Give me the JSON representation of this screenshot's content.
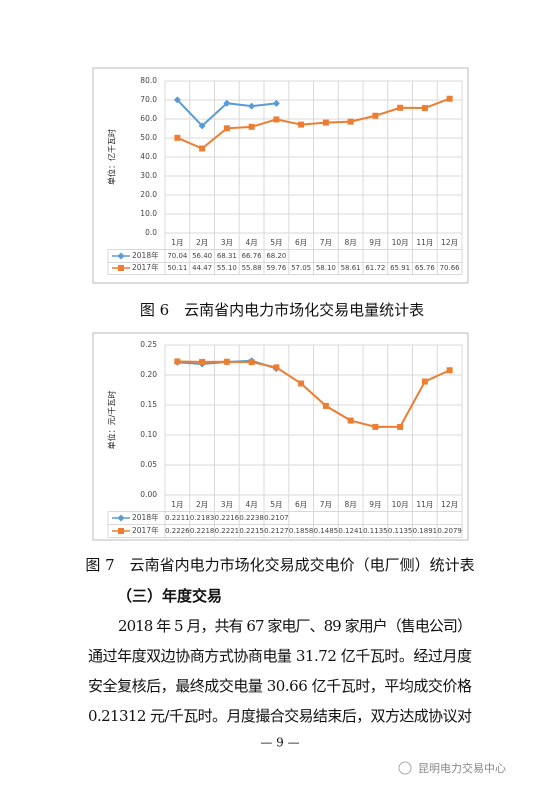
{
  "chart_data": [
    {
      "type": "line",
      "ylabel": "单位：亿千瓦时",
      "categories": [
        "1月",
        "2月",
        "3月",
        "4月",
        "5月",
        "6月",
        "7月",
        "8月",
        "9月",
        "10月",
        "11月",
        "12月"
      ],
      "series": [
        {
          "name": "2018年",
          "color": "#5b9bd5",
          "marker": "diamond",
          "values": [
            70.04,
            56.4,
            68.31,
            66.76,
            68.2,
            null,
            null,
            null,
            null,
            null,
            null,
            null
          ],
          "value_labels": [
            "70.04",
            "56.40",
            "68.31",
            "66.76",
            "68.20",
            null,
            null,
            null,
            null,
            null,
            null,
            null
          ]
        },
        {
          "name": "2017年",
          "color": "#ed7d31",
          "marker": "square",
          "values": [
            50.11,
            44.47,
            55.1,
            55.88,
            59.76,
            57.05,
            58.1,
            58.61,
            61.72,
            65.91,
            65.76,
            70.66
          ],
          "value_labels": [
            "50.11",
            "44.47",
            "55.10",
            "55.88",
            "59.76",
            "57.05",
            "58.10",
            "58.61",
            "61.72",
            "65.91",
            "65.76",
            "70.66"
          ]
        }
      ],
      "ylim": [
        0,
        80
      ],
      "yticks": [
        {
          "value": 0,
          "label": "0.0"
        },
        {
          "value": 10,
          "label": "10.0"
        },
        {
          "value": 20,
          "label": "20.0"
        },
        {
          "value": 30,
          "label": "30.0"
        },
        {
          "value": 40,
          "label": "40.0"
        },
        {
          "value": 50,
          "label": "50.0"
        },
        {
          "value": 60,
          "label": "60.0"
        },
        {
          "value": 70,
          "label": "70.0"
        },
        {
          "value": 80,
          "label": "80.0"
        }
      ],
      "grid": true
    },
    {
      "type": "line",
      "ylabel": "单位：元/千瓦时",
      "categories": [
        "1月",
        "2月",
        "3月",
        "4月",
        "5月",
        "6月",
        "7月",
        "8月",
        "9月",
        "10月",
        "11月",
        "12月"
      ],
      "series": [
        {
          "name": "2018年",
          "color": "#5b9bd5",
          "marker": "diamond",
          "values": [
            0.2211,
            0.2183,
            0.2216,
            0.2238,
            0.2107,
            null,
            null,
            null,
            null,
            null,
            null,
            null
          ]
        },
        {
          "name": "2017年",
          "color": "#ed7d31",
          "marker": "square",
          "values": [
            0.2226,
            0.2218,
            0.2221,
            0.2215,
            0.2127,
            0.1858,
            0.1485,
            0.1241,
            0.1135,
            0.1135,
            0.1891,
            0.2079
          ]
        }
      ],
      "ylim": [
        0,
        0.25
      ],
      "yticks": [
        {
          "value": 0,
          "label": "0.00"
        },
        {
          "value": 0.05,
          "label": "0.05"
        },
        {
          "value": 0.1,
          "label": "0.10"
        },
        {
          "value": 0.15,
          "label": "0.15"
        },
        {
          "value": 0.2,
          "label": "0.20"
        },
        {
          "value": 0.25,
          "label": "0.25"
        }
      ],
      "grid": true
    }
  ],
  "document": {
    "captions": [
      "图 6　云南省内电力市场化交易电量统计表",
      "图 7　云南省内电力市场化交易成交电价（电厂侧）统计表"
    ],
    "heading": "（三）年度交易",
    "paragraph_lines": [
      "2018 年 5 月，共有 67 家电厂、89 家用户（售电公司）",
      "通过年度双边协商方式协商电量 31.72 亿千瓦时。经过月度",
      "安全复核后，最终成交电量 30.66 亿千瓦时，平均成交价格",
      "0.21312 元/千瓦时。月度撮合交易结束后，双方达成协议对"
    ],
    "page_number": "— 9 —",
    "watermark": "昆明电力交易中心"
  }
}
